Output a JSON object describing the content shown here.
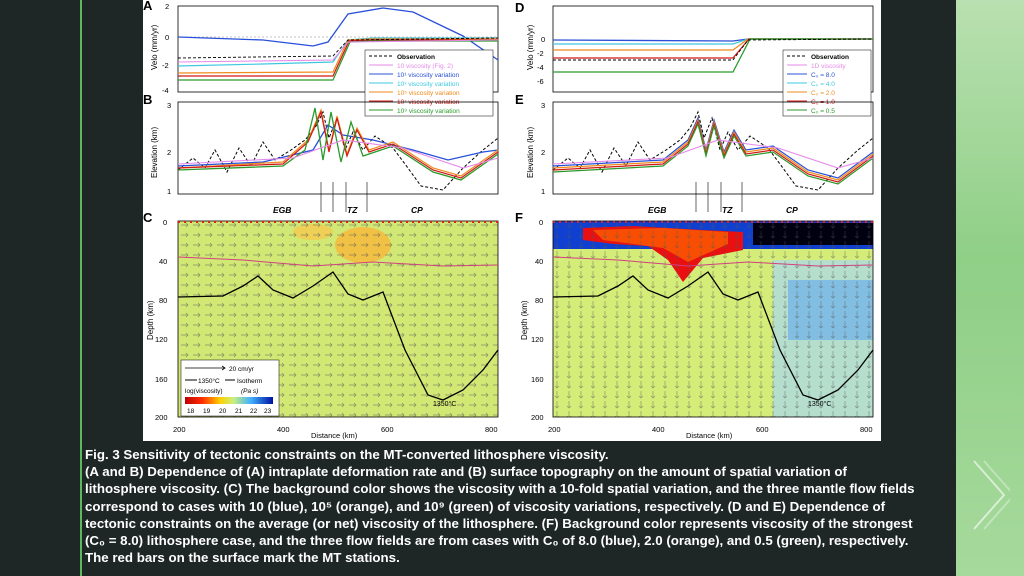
{
  "figure": {
    "panel_letters": [
      "A",
      "B",
      "C",
      "D",
      "E",
      "F"
    ],
    "left": {
      "velo_label": "Velo (mm/yr)",
      "velo_ticks": [
        "2",
        "0",
        "-2",
        "-4"
      ],
      "elev_label": "Elevation (km)",
      "elev_ticks": [
        "3",
        "2",
        "1"
      ],
      "depth_label": "Depth (km)",
      "depth_ticks": [
        "0",
        "40",
        "80",
        "120",
        "160",
        "200"
      ],
      "distance_ticks": [
        "200",
        "400",
        "600",
        "800"
      ],
      "distance_label": "Distance (km)",
      "regions": [
        "EGB",
        "TZ",
        "CP"
      ],
      "legend": [
        {
          "label": "Observation",
          "color": "#000000"
        },
        {
          "label": "10 viscosity (Fig. 2)",
          "color": "#e58ae8"
        },
        {
          "label": "10¹ viscosity variation",
          "color": "#2850d8"
        },
        {
          "label": "10³ viscosity variation",
          "color": "#3ec8e0"
        },
        {
          "label": "10⁵ viscosity variation",
          "color": "#f08a1c"
        },
        {
          "label": "10⁷ viscosity variation",
          "color": "#d01818"
        },
        {
          "label": "10⁹ viscosity variation",
          "color": "#2a9a2a"
        }
      ],
      "scale": {
        "vector_label": "20 cm/yr",
        "isotherm_value": "1350°C",
        "isotherm_word": "Isotherm",
        "colorbar_title": "log(viscosity)",
        "colorbar_unit": "(Pa s)",
        "colorbar_ticks": [
          "18",
          "19",
          "20",
          "21",
          "22",
          "23"
        ]
      },
      "isotherm_label": "1350°C"
    },
    "right": {
      "velo_label": "Velo (mm/yr)",
      "velo_ticks": [
        "0",
        "-2",
        "-4",
        "-6"
      ],
      "elev_label": "Elevation (km)",
      "elev_ticks": [
        "3",
        "2",
        "1"
      ],
      "depth_label": "Depth (km)",
      "depth_ticks": [
        "0",
        "40",
        "80",
        "120",
        "160",
        "200"
      ],
      "distance_ticks": [
        "200",
        "400",
        "600",
        "800"
      ],
      "distance_label": "Distance (km)",
      "regions": [
        "EGB",
        "TZ",
        "CP"
      ],
      "legend": [
        {
          "label": "Observation",
          "color": "#000000"
        },
        {
          "label": "1D viscosity",
          "color": "#e58ae8"
        },
        {
          "label": "C₀ = 8.0",
          "color": "#2850d8"
        },
        {
          "label": "C₀ = 4.0",
          "color": "#3ec8e0"
        },
        {
          "label": "C₀ = 2.0",
          "color": "#f08a1c"
        },
        {
          "label": "C₀ = 1.0",
          "color": "#d01818"
        },
        {
          "label": "C₀ = 0.5",
          "color": "#2a9a2a"
        }
      ],
      "isotherm_label": "1350°C"
    }
  },
  "caption": {
    "line1": "Fig. 3 Sensitivity of tectonic constraints on the MT-converted lithosphere viscosity.",
    "line2": "(A and B) Dependence of (A) intraplate deformation rate and (B) surface topography on the amount of spatial variation of",
    "line3": "lithosphere viscosity. (C) The background color shows the viscosity with a 10-fold spatial variation, and the three mantle flow fields",
    "line4": "correspond to cases with 10 (blue), 10⁵ (orange), and 10⁹ (green) of viscosity variations, respectively. (D and E) Dependence of",
    "line5": "tectonic constraints on the average (or net) viscosity of the lithosphere. (F) Background color represents viscosity of the strongest",
    "line6": "(C₀ = 8.0) lithosphere case, and the three flow fields are from cases with C₀ of 8.0 (blue), 2.0 (orange), and 0.5 (green), respectively.",
    "line7": "The red bars on the surface mark the MT stations."
  }
}
